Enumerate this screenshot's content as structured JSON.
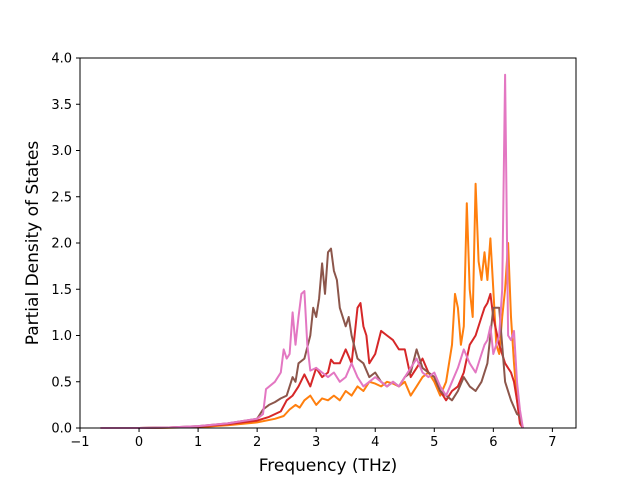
{
  "chart_data": {
    "type": "line",
    "title": "",
    "xlabel": "Frequency (THz)",
    "ylabel": "Partial Density of States",
    "xlim": [
      -1.0,
      7.4
    ],
    "ylim": [
      0.0,
      4.0
    ],
    "xticks": [
      -1,
      0,
      1,
      2,
      3,
      4,
      5,
      6,
      7
    ],
    "yticks": [
      0.0,
      0.5,
      1.0,
      1.5,
      2.0,
      2.5,
      3.0,
      3.5,
      4.0
    ],
    "grid": false,
    "legend": "none",
    "series": [
      {
        "color": "#ff7f0e",
        "x": [
          -0.65,
          0.0,
          0.5,
          1.0,
          1.5,
          2.0,
          2.3,
          2.45,
          2.55,
          2.65,
          2.72,
          2.8,
          2.9,
          3.0,
          3.1,
          3.2,
          3.3,
          3.4,
          3.5,
          3.6,
          3.7,
          3.8,
          3.9,
          4.0,
          4.1,
          4.2,
          4.3,
          4.4,
          4.5,
          4.6,
          4.7,
          4.8,
          4.9,
          5.0,
          5.1,
          5.2,
          5.3,
          5.35,
          5.4,
          5.45,
          5.5,
          5.55,
          5.6,
          5.65,
          5.7,
          5.75,
          5.8,
          5.85,
          5.9,
          5.95,
          6.0,
          6.05,
          6.1,
          6.15,
          6.2,
          6.25,
          6.3,
          6.35,
          6.4,
          6.45,
          6.5
        ],
        "y": [
          0.0,
          0.0,
          0.003,
          0.01,
          0.03,
          0.06,
          0.1,
          0.13,
          0.2,
          0.25,
          0.22,
          0.3,
          0.35,
          0.25,
          0.32,
          0.3,
          0.35,
          0.3,
          0.4,
          0.35,
          0.45,
          0.4,
          0.5,
          0.48,
          0.45,
          0.5,
          0.48,
          0.45,
          0.5,
          0.35,
          0.45,
          0.55,
          0.6,
          0.5,
          0.35,
          0.5,
          0.9,
          1.45,
          1.3,
          0.9,
          1.1,
          2.43,
          1.5,
          1.2,
          2.64,
          1.8,
          1.6,
          1.9,
          1.6,
          2.05,
          1.5,
          0.9,
          0.8,
          1.2,
          1.5,
          2.0,
          1.2,
          0.7,
          0.3,
          0.1,
          0.0
        ]
      },
      {
        "color": "#d62728",
        "x": [
          -0.65,
          0.0,
          0.5,
          1.0,
          1.5,
          2.0,
          2.2,
          2.4,
          2.5,
          2.6,
          2.7,
          2.8,
          2.9,
          3.0,
          3.1,
          3.2,
          3.25,
          3.3,
          3.4,
          3.5,
          3.6,
          3.65,
          3.7,
          3.75,
          3.8,
          3.85,
          3.9,
          4.0,
          4.1,
          4.2,
          4.3,
          4.4,
          4.5,
          4.6,
          4.7,
          4.8,
          4.9,
          5.0,
          5.1,
          5.2,
          5.3,
          5.4,
          5.5,
          5.6,
          5.7,
          5.8,
          5.85,
          5.9,
          5.95,
          6.0,
          6.1,
          6.2,
          6.3,
          6.35,
          6.4,
          6.45,
          6.5
        ],
        "y": [
          0.0,
          0.0,
          0.005,
          0.015,
          0.04,
          0.08,
          0.12,
          0.18,
          0.3,
          0.35,
          0.45,
          0.58,
          0.45,
          0.65,
          0.55,
          0.6,
          0.74,
          0.7,
          0.7,
          0.85,
          0.7,
          1.0,
          1.3,
          1.35,
          1.1,
          1.0,
          0.7,
          0.8,
          1.05,
          1.0,
          0.95,
          0.85,
          0.85,
          0.55,
          0.65,
          0.75,
          0.6,
          0.55,
          0.4,
          0.3,
          0.4,
          0.45,
          0.6,
          0.9,
          1.0,
          1.2,
          1.3,
          1.35,
          1.45,
          1.2,
          0.9,
          0.7,
          0.6,
          0.5,
          0.3,
          0.05,
          0.0
        ]
      },
      {
        "color": "#8c564b",
        "x": [
          -0.65,
          0.0,
          0.5,
          1.0,
          1.5,
          2.0,
          2.1,
          2.2,
          2.3,
          2.4,
          2.5,
          2.6,
          2.65,
          2.7,
          2.8,
          2.9,
          2.95,
          3.0,
          3.05,
          3.1,
          3.15,
          3.2,
          3.25,
          3.3,
          3.35,
          3.4,
          3.5,
          3.55,
          3.6,
          3.7,
          3.8,
          3.9,
          4.0,
          4.1,
          4.2,
          4.3,
          4.4,
          4.5,
          4.6,
          4.7,
          4.8,
          4.9,
          5.0,
          5.1,
          5.2,
          5.3,
          5.4,
          5.5,
          5.6,
          5.7,
          5.8,
          5.9,
          6.0,
          6.1,
          6.2,
          6.3,
          6.4,
          6.45,
          6.5
        ],
        "y": [
          0.0,
          0.0,
          0.005,
          0.02,
          0.05,
          0.1,
          0.2,
          0.25,
          0.28,
          0.32,
          0.35,
          0.55,
          0.5,
          0.7,
          0.75,
          1.0,
          1.3,
          1.2,
          1.4,
          1.78,
          1.45,
          1.9,
          1.94,
          1.7,
          1.6,
          1.3,
          1.1,
          1.2,
          1.0,
          0.75,
          0.7,
          0.55,
          0.6,
          0.5,
          0.45,
          0.5,
          0.45,
          0.55,
          0.6,
          0.85,
          0.65,
          0.6,
          0.55,
          0.4,
          0.35,
          0.3,
          0.4,
          0.55,
          0.45,
          0.4,
          0.5,
          0.7,
          1.3,
          1.3,
          0.5,
          0.3,
          0.15,
          0.13,
          0.0
        ]
      },
      {
        "color": "#e377c2",
        "x": [
          -0.65,
          0.0,
          0.5,
          1.0,
          1.5,
          2.0,
          2.1,
          2.15,
          2.3,
          2.4,
          2.45,
          2.5,
          2.55,
          2.6,
          2.65,
          2.7,
          2.75,
          2.8,
          2.85,
          2.9,
          3.0,
          3.1,
          3.2,
          3.3,
          3.4,
          3.5,
          3.6,
          3.7,
          3.8,
          3.9,
          4.0,
          4.1,
          4.2,
          4.3,
          4.4,
          4.5,
          4.6,
          4.7,
          4.8,
          4.9,
          5.0,
          5.1,
          5.2,
          5.3,
          5.4,
          5.5,
          5.6,
          5.7,
          5.8,
          5.85,
          5.9,
          5.95,
          6.0,
          6.1,
          6.15,
          6.2,
          6.25,
          6.3,
          6.35,
          6.4,
          6.45,
          6.5
        ],
        "y": [
          0.0,
          0.0,
          0.005,
          0.02,
          0.05,
          0.1,
          0.15,
          0.42,
          0.5,
          0.6,
          0.85,
          0.75,
          0.8,
          1.25,
          0.9,
          1.2,
          1.45,
          1.48,
          0.9,
          0.62,
          0.65,
          0.6,
          0.55,
          0.6,
          0.5,
          0.55,
          0.7,
          0.55,
          0.45,
          0.5,
          0.55,
          0.5,
          0.45,
          0.5,
          0.45,
          0.55,
          0.65,
          0.75,
          0.6,
          0.55,
          0.6,
          0.45,
          0.35,
          0.5,
          0.65,
          0.85,
          0.7,
          0.6,
          0.8,
          0.9,
          0.95,
          1.1,
          0.8,
          1.0,
          1.5,
          3.82,
          1.0,
          0.95,
          1.05,
          0.5,
          0.2,
          0.0
        ]
      }
    ]
  }
}
